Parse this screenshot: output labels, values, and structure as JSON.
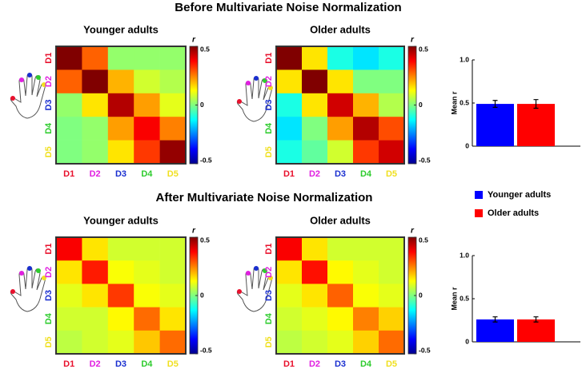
{
  "headings": [
    "Before Multivariate Noise Normalization",
    "After Multivariate Noise Normalization"
  ],
  "chart_data": [
    {
      "type": "heatmap",
      "title": "Younger adults",
      "rows": [
        "D1",
        "D2",
        "D3",
        "D4",
        "D5"
      ],
      "columns": [
        "D1",
        "D2",
        "D3",
        "D4",
        "D5"
      ],
      "label_colors": [
        "#e8112d",
        "#e020e0",
        "#1a2fd0",
        "#2ecc2e",
        "#f0e020"
      ],
      "values": [
        [
          0.5,
          0.28,
          0.02,
          0.02,
          0.02
        ],
        [
          0.28,
          0.5,
          0.2,
          0.08,
          0.05
        ],
        [
          0.02,
          0.15,
          0.45,
          0.22,
          0.1
        ],
        [
          0,
          0.02,
          0.22,
          0.38,
          0.25
        ],
        [
          0,
          0.02,
          0.15,
          0.32,
          0.48
        ]
      ],
      "colorbar_label": "r",
      "zlim": [
        -0.5,
        0.5
      ],
      "zticks": [
        0.5,
        0,
        -0.5
      ]
    },
    {
      "type": "heatmap",
      "title": "Older adults",
      "rows": [
        "D1",
        "D2",
        "D3",
        "D4",
        "D5"
      ],
      "columns": [
        "D1",
        "D2",
        "D3",
        "D4",
        "D5"
      ],
      "label_colors": [
        "#e8112d",
        "#e020e0",
        "#1a2fd0",
        "#2ecc2e",
        "#f0e020"
      ],
      "values": [
        [
          0.5,
          0.15,
          -0.1,
          -0.15,
          -0.1
        ],
        [
          0.15,
          0.5,
          0.15,
          0,
          0
        ],
        [
          -0.1,
          0.15,
          0.42,
          0.2,
          0.05
        ],
        [
          -0.15,
          0,
          0.22,
          0.45,
          0.3
        ],
        [
          -0.1,
          -0.03,
          0.08,
          0.32,
          0.42
        ]
      ],
      "colorbar_label": "r",
      "zlim": [
        -0.5,
        0.5
      ],
      "zticks": [
        0.5,
        0,
        -0.5
      ]
    },
    {
      "type": "bar",
      "categories": [
        null
      ],
      "ylabel": "Mean r",
      "ylim": [
        0,
        1
      ],
      "yticks": [
        0,
        0.5,
        {
          "value": 1,
          "label": "1.0"
        }
      ],
      "legend": true,
      "series": [
        {
          "name": "Younger adults",
          "color": "#0000ff",
          "values": [
            0.49
          ],
          "errors": [
            0.04
          ]
        },
        {
          "name": "Older adults",
          "color": "#ff0000",
          "values": [
            0.49
          ],
          "errors": [
            0.05
          ]
        }
      ]
    },
    {
      "type": "heatmap",
      "title": "Younger adults",
      "rows": [
        "D1",
        "D2",
        "D3",
        "D4",
        "D5"
      ],
      "columns": [
        "D1",
        "D2",
        "D3",
        "D4",
        "D5"
      ],
      "label_colors": [
        "#e8112d",
        "#e020e0",
        "#1a2fd0",
        "#2ecc2e",
        "#f0e020"
      ],
      "values": [
        [
          0.38,
          0.15,
          0.08,
          0.08,
          0.08
        ],
        [
          0.15,
          0.35,
          0.12,
          0.1,
          0.08
        ],
        [
          0.1,
          0.15,
          0.32,
          0.12,
          0.1
        ],
        [
          0.08,
          0.08,
          0.13,
          0.27,
          0.15
        ],
        [
          0.06,
          0.08,
          0.1,
          0.18,
          0.27
        ]
      ],
      "colorbar_label": "r",
      "zlim": [
        -0.5,
        0.5
      ],
      "zticks": [
        0.5,
        0,
        -0.5
      ]
    },
    {
      "type": "heatmap",
      "title": "Older adults",
      "rows": [
        "D1",
        "D2",
        "D3",
        "D4",
        "D5"
      ],
      "columns": [
        "D1",
        "D2",
        "D3",
        "D4",
        "D5"
      ],
      "label_colors": [
        "#e8112d",
        "#e020e0",
        "#1a2fd0",
        "#2ecc2e",
        "#f0e020"
      ],
      "values": [
        [
          0.38,
          0.15,
          0.08,
          0.08,
          0.08
        ],
        [
          0.15,
          0.36,
          0.13,
          0.1,
          0.08
        ],
        [
          0.1,
          0.15,
          0.28,
          0.12,
          0.1
        ],
        [
          0.08,
          0.1,
          0.13,
          0.25,
          0.17
        ],
        [
          0.06,
          0.08,
          0.1,
          0.17,
          0.27
        ]
      ],
      "colorbar_label": "r",
      "zlim": [
        -0.5,
        0.5
      ],
      "zticks": [
        0.5,
        0,
        -0.5
      ]
    },
    {
      "type": "bar",
      "categories": [
        null
      ],
      "ylabel": "Mean r",
      "ylim": [
        0,
        1
      ],
      "yticks": [
        0,
        0.5,
        {
          "value": 1,
          "label": "1.0"
        }
      ],
      "legend": false,
      "series": [
        {
          "color": "#0000ff",
          "values": [
            0.26
          ],
          "errors": [
            0.03
          ]
        },
        {
          "color": "#ff0000",
          "values": [
            0.26
          ],
          "errors": [
            0.03
          ]
        }
      ]
    }
  ]
}
